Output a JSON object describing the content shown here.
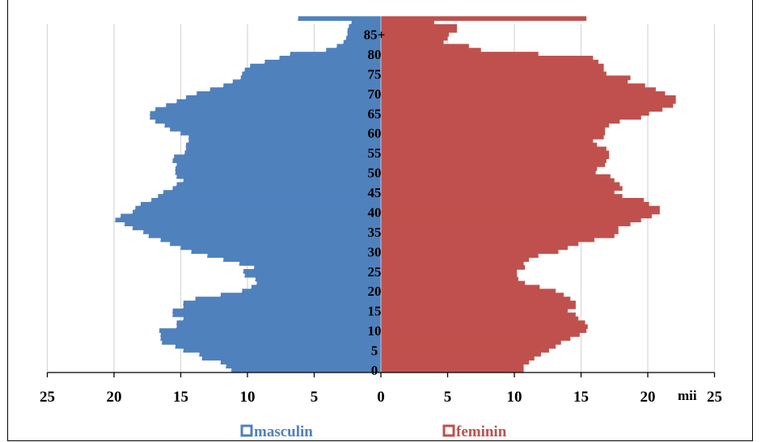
{
  "chart_data": {
    "type": "bar",
    "orientation": "horizontal",
    "subtype": "population-pyramid",
    "unit": "mii",
    "xlim": [
      -25,
      25
    ],
    "x_tick_values": [
      -25,
      -20,
      -15,
      -10,
      -5,
      0,
      5,
      10,
      15,
      20,
      25
    ],
    "x_tick_labels": [
      "25",
      "20",
      "15",
      "10",
      "5",
      "0",
      "5",
      "10",
      "15",
      "20",
      "25"
    ],
    "age_tick_values": [
      0,
      5,
      10,
      15,
      20,
      25,
      30,
      35,
      40,
      45,
      50,
      55,
      60,
      65,
      70,
      75,
      80,
      85
    ],
    "age_tick_labels": [
      "0",
      "5",
      "10",
      "15",
      "20",
      "25",
      "30",
      "35",
      "40",
      "45",
      "50",
      "55",
      "60",
      "65",
      "70",
      "75",
      "80",
      "85+"
    ],
    "grid": "vertical",
    "legend_position": "bottom",
    "series": [
      {
        "name": "masculin",
        "color": "#4f81bd",
        "values": [
          11.2,
          11.6,
          12.0,
          13.4,
          13.6,
          14.8,
          15.4,
          16.4,
          16.5,
          16.5,
          16.6,
          15.3,
          15.3,
          14.8,
          15.6,
          15.6,
          14.8,
          14.8,
          13.9,
          12.0,
          10.4,
          9.7,
          9.3,
          9.4,
          10.2,
          10.3,
          9.5,
          10.6,
          11.8,
          13.0,
          14.2,
          15.0,
          15.8,
          16.5,
          17.4,
          17.8,
          18.6,
          19.2,
          19.9,
          19.5,
          18.6,
          18.4,
          18.0,
          17.2,
          16.7,
          16.3,
          15.6,
          15.3,
          14.8,
          15.3,
          15.4,
          15.4,
          15.3,
          15.6,
          15.5,
          14.7,
          14.6,
          14.6,
          14.4,
          14.4,
          15.0,
          15.8,
          16.2,
          16.9,
          17.3,
          17.3,
          16.9,
          16.1,
          15.3,
          14.6,
          13.8,
          12.8,
          11.8,
          11.1,
          10.5,
          10.4,
          10.2,
          9.8,
          8.7,
          7.6,
          6.8,
          4.1,
          3.3,
          2.8,
          2.6,
          2.5,
          2.5,
          2.4,
          2.2,
          6.2
        ]
      },
      {
        "name": "feminin",
        "color": "#c0504d",
        "values": [
          10.7,
          10.7,
          11.1,
          11.5,
          12.0,
          12.6,
          13.1,
          13.5,
          14.2,
          14.9,
          15.4,
          15.5,
          15.3,
          14.8,
          14.6,
          14.0,
          14.6,
          14.6,
          14.2,
          13.7,
          13.1,
          11.9,
          10.8,
          10.3,
          10.2,
          10.2,
          10.8,
          10.7,
          11.1,
          11.8,
          13.3,
          14.0,
          14.8,
          16.0,
          17.5,
          17.8,
          17.8,
          18.7,
          19.5,
          20.3,
          20.9,
          20.9,
          20.1,
          19.7,
          18.1,
          17.5,
          18.1,
          17.9,
          17.5,
          17.2,
          16.1,
          16.2,
          16.8,
          16.9,
          17.1,
          17.1,
          16.9,
          16.2,
          15.9,
          16.7,
          16.8,
          16.8,
          17.1,
          17.9,
          19.5,
          20.1,
          21.1,
          21.9,
          22.1,
          22.1,
          21.3,
          20.6,
          19.8,
          18.5,
          18.7,
          16.9,
          16.7,
          16.7,
          16.3,
          15.9,
          11.8,
          7.5,
          6.6,
          4.7,
          5.0,
          5.1,
          5.7,
          5.7,
          4.0,
          15.4
        ]
      }
    ]
  }
}
